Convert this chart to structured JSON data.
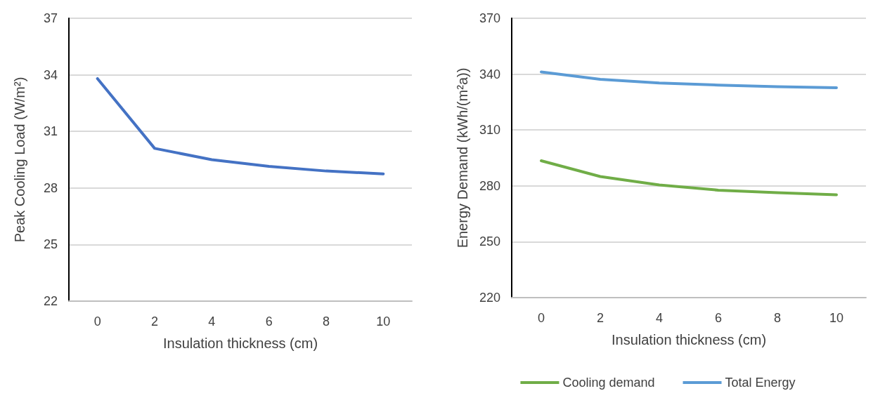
{
  "chart_data": [
    {
      "type": "line",
      "xlabel": "Insulation thickness (cm)",
      "ylabel": "Peak Cooling Load (W/m²)",
      "categories": [
        "0",
        "2",
        "4",
        "6",
        "8",
        "10"
      ],
      "series": [
        {
          "color": "#4472c4",
          "values": [
            33.8,
            30.1,
            29.5,
            29.15,
            28.9,
            28.75
          ]
        }
      ],
      "ylim": [
        22,
        37
      ],
      "yticks": [
        22,
        25,
        28,
        31,
        34,
        37
      ],
      "grid": "y",
      "legend": false,
      "marker": "none",
      "line_style": "solid"
    },
    {
      "type": "line",
      "xlabel": "Insulation thickness (cm)",
      "ylabel": "Energy Demand (kWh/(m²a))",
      "categories": [
        "0",
        "2",
        "4",
        "6",
        "8",
        "10"
      ],
      "series": [
        {
          "name": "Cooling demand",
          "color": "#70ad47",
          "values": [
            293.5,
            285.0,
            280.5,
            277.7,
            276.3,
            275.2
          ]
        },
        {
          "name": "Total Energy",
          "color": "#5b9bd5",
          "values": [
            341.2,
            337.2,
            335.2,
            334.1,
            333.3,
            332.7
          ]
        }
      ],
      "ylim": [
        220,
        370
      ],
      "yticks": [
        220,
        250,
        280,
        310,
        340,
        370
      ],
      "grid": "y",
      "legend": "bottom",
      "marker": "none",
      "line_style": "solid"
    }
  ]
}
